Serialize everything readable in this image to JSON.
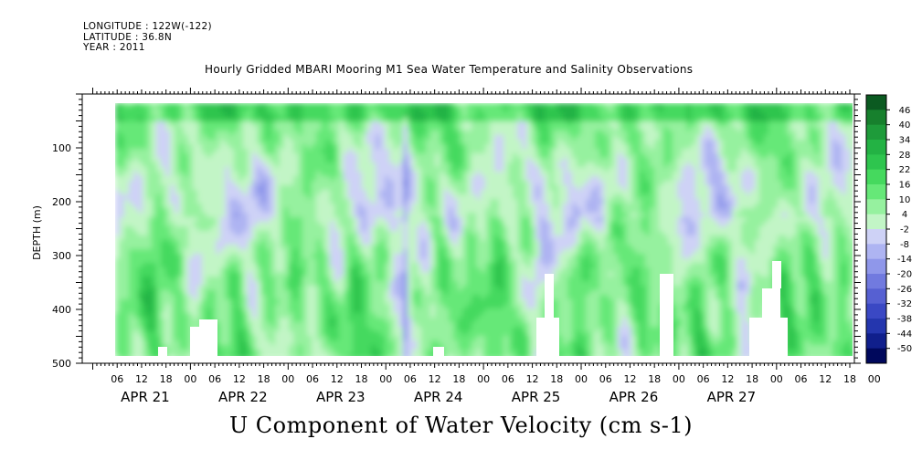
{
  "header": {
    "longitude": "LONGITUDE : 122W(-122)",
    "latitude": "LATITUDE : 36.8N",
    "year": "YEAR : 2011",
    "title": "Hourly Gridded MBARI Mooring M1 Sea Water Temperature and Salinity Observations"
  },
  "bottom_title": "U Component of Water Velocity (cm s-1)",
  "chart_data": {
    "type": "heatmap",
    "title": "Hourly Gridded MBARI Mooring M1 Sea Water Temperature and Salinity Observations",
    "subtitle": "U Component of Water Velocity (cm s-1)",
    "ylabel": "DEPTH (m)",
    "xlabel": "",
    "xlim_hours": [
      0,
      186
    ],
    "ylim": [
      500,
      0
    ],
    "y_ticks": [
      100,
      200,
      300,
      400,
      500
    ],
    "y_tick_labels": [
      "100",
      "200",
      "300",
      "400",
      "500"
    ],
    "x_hour_labels": [
      "06",
      "12",
      "18",
      "00",
      "06",
      "12",
      "18",
      "00",
      "06",
      "12",
      "18",
      "00",
      "06",
      "12",
      "18",
      "00",
      "06",
      "12",
      "18",
      "00",
      "06",
      "12",
      "18",
      "00",
      "06",
      "12",
      "18",
      "00",
      "06",
      "12",
      "18",
      "00"
    ],
    "x_day_labels": [
      "APR 21",
      "APR 22",
      "APR 23",
      "APR 24",
      "APR 25",
      "APR 26",
      "APR 27"
    ],
    "data_depth_range_m": [
      20,
      485
    ],
    "colorbar_levels": [
      46,
      40,
      34,
      28,
      22,
      16,
      10,
      4,
      -2,
      -8,
      -14,
      -20,
      -26,
      -32,
      -38,
      -44,
      -50
    ],
    "colorbar_labels": [
      "46",
      "40",
      "34",
      "28",
      "22",
      "16",
      "10",
      "4",
      "-2",
      "-8",
      "-14",
      "-20",
      "-26",
      "-32",
      "-38",
      "-44",
      "-50"
    ],
    "colorbar_colors": [
      "#0b5a21",
      "#17802d",
      "#1e9b3a",
      "#23b244",
      "#2ec54e",
      "#45d95e",
      "#66e878",
      "#96f19f",
      "#c2f5c6",
      "#ced2f6",
      "#aeb4f2",
      "#8f97ea",
      "#717adf",
      "#5660d2",
      "#3a48c4",
      "#2436ae",
      "#101f8c",
      "#00085c"
    ],
    "description_values": "velocity range about -20 to +25 cm/s; mostly weak green (positive) near surface, bluish (negative) at 100-300 m"
  }
}
